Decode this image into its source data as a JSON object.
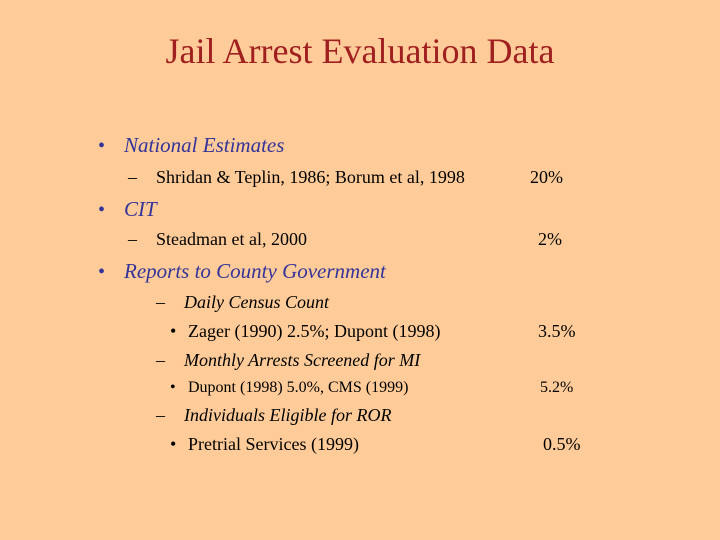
{
  "slide": {
    "title": "Jail Arrest Evaluation Data",
    "bullet_glyph": "•",
    "dash_glyph": "–",
    "items": [
      {
        "label": "National Estimates",
        "subs": [
          {
            "text": "Shridan & Teplin, 1986; Borum et al, 1998",
            "value": "20%"
          }
        ]
      },
      {
        "label": "CIT",
        "subs": [
          {
            "text": "Steadman et al, 2000",
            "value": "2%"
          }
        ]
      },
      {
        "label": "Reports to County Government",
        "subs": [
          {
            "text": "Daily Census Count",
            "detail": "Zager (1990) 2.5%; Dupont (1998)",
            "value": "3.5%"
          },
          {
            "text": "Monthly Arrests Screened for MI",
            "detail": "Dupont (1998) 5.0%, CMS (1999)",
            "value": "5.2%"
          },
          {
            "text": "Individuals Eligible for ROR",
            "detail": "Pretrial Services (1999)",
            "value": "0.5%"
          }
        ]
      }
    ]
  }
}
